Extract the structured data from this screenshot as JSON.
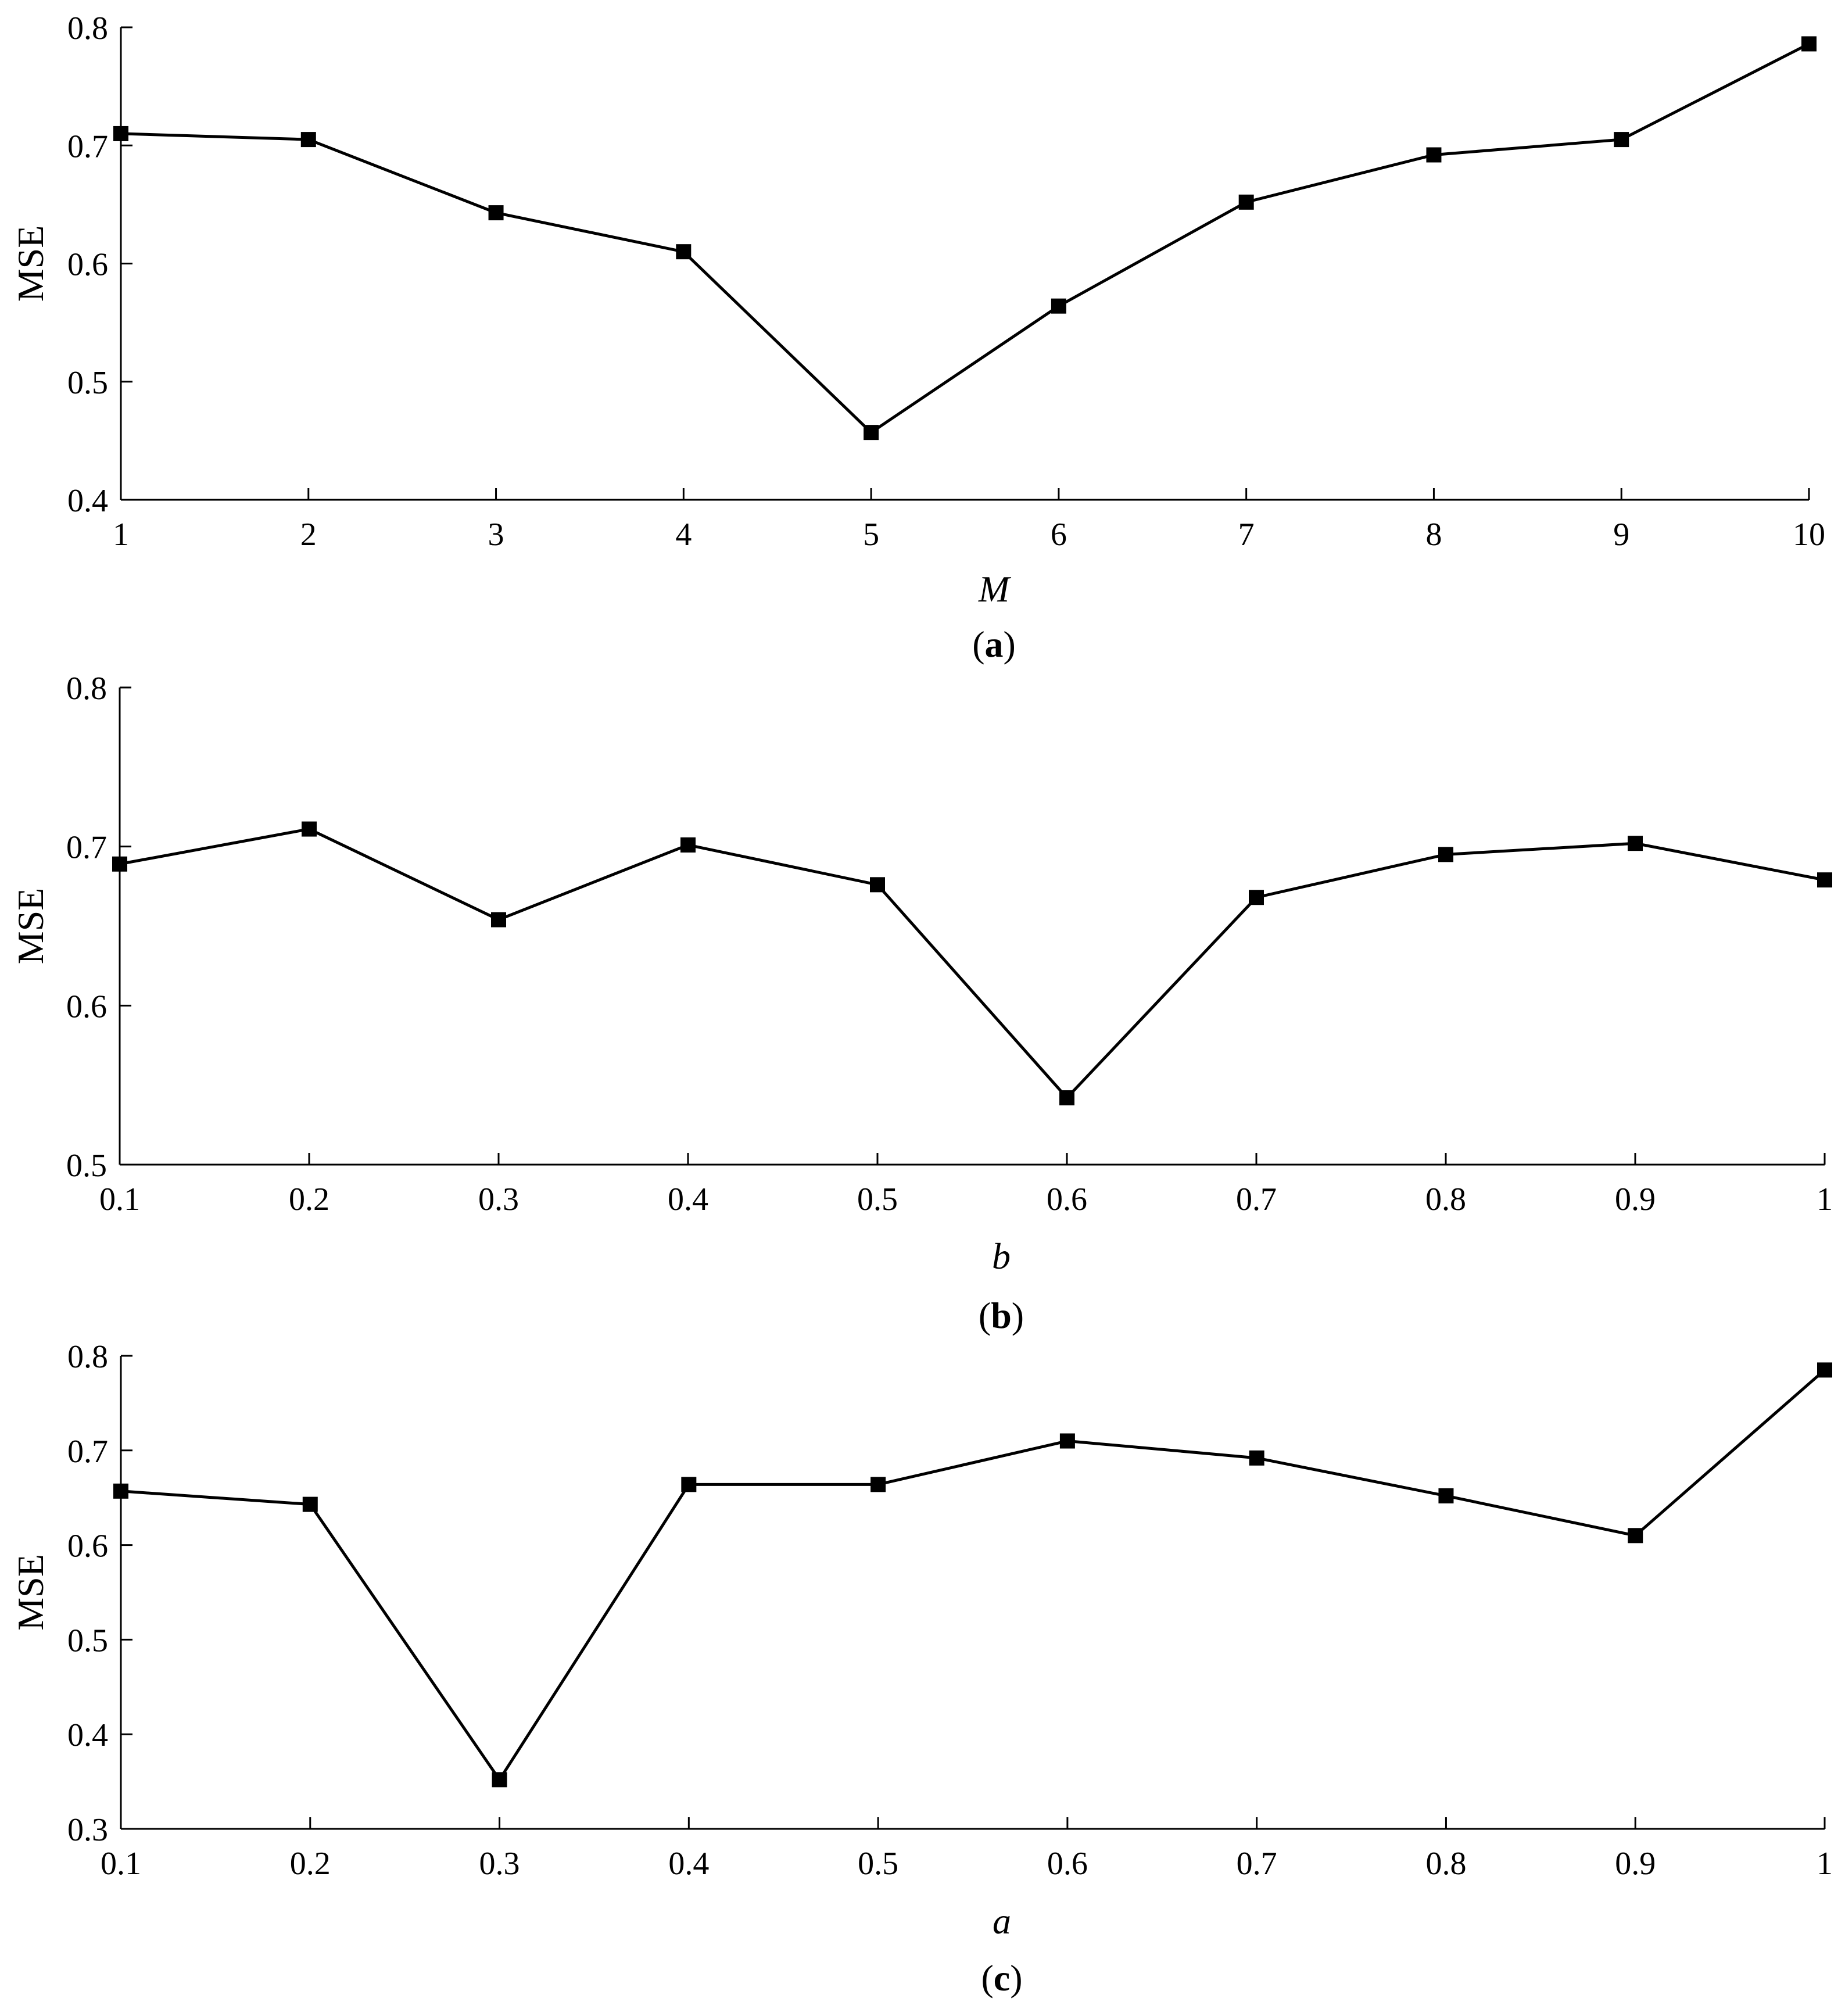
{
  "chart_data": [
    {
      "type": "line",
      "caption": {
        "open": "(",
        "letter": "a",
        "close": ")"
      },
      "xlabel": "M",
      "ylabel": "MSE",
      "xlim": [
        1,
        10
      ],
      "ylim": [
        0.4,
        0.8
      ],
      "xticks": [
        1,
        2,
        3,
        4,
        5,
        6,
        7,
        8,
        9,
        10
      ],
      "xtick_labels": [
        "1",
        "2",
        "3",
        "4",
        "5",
        "6",
        "7",
        "8",
        "9",
        "10"
      ],
      "yticks": [
        0.4,
        0.5,
        0.6,
        0.7,
        0.8
      ],
      "ytick_labels": [
        "0.4",
        "0.5",
        "0.6",
        "0.7",
        "0.8"
      ],
      "grid": false,
      "legend": "none",
      "series": [
        {
          "x": [
            1,
            2,
            3,
            4,
            5,
            6,
            7,
            8,
            9,
            10
          ],
          "values": [
            0.71,
            0.705,
            0.643,
            0.61,
            0.457,
            0.564,
            0.652,
            0.692,
            0.705,
            0.786
          ]
        }
      ]
    },
    {
      "type": "line",
      "caption": {
        "open": "(",
        "letter": "b",
        "close": ")"
      },
      "xlabel": "b",
      "ylabel": "MSE",
      "xlim": [
        0.1,
        1
      ],
      "ylim": [
        0.5,
        0.8
      ],
      "xticks": [
        0.1,
        0.2,
        0.3,
        0.4,
        0.5,
        0.6,
        0.7,
        0.8,
        0.9,
        1
      ],
      "xtick_labels": [
        "0.1",
        "0.2",
        "0.3",
        "0.4",
        "0.5",
        "0.6",
        "0.7",
        "0.8",
        "0.9",
        "1"
      ],
      "yticks": [
        0.5,
        0.6,
        0.7,
        0.8
      ],
      "ytick_labels": [
        "0.5",
        "0.6",
        "0.7",
        "0.8"
      ],
      "grid": false,
      "legend": "none",
      "series": [
        {
          "x": [
            0.1,
            0.2,
            0.3,
            0.4,
            0.5,
            0.6,
            0.7,
            0.8,
            0.9,
            1
          ],
          "values": [
            0.689,
            0.711,
            0.654,
            0.701,
            0.676,
            0.542,
            0.668,
            0.695,
            0.702,
            0.679
          ]
        }
      ]
    },
    {
      "type": "line",
      "caption": {
        "open": "(",
        "letter": "c",
        "close": ")"
      },
      "xlabel": "a",
      "ylabel": "MSE",
      "xlim": [
        0.1,
        1
      ],
      "ylim": [
        0.3,
        0.8
      ],
      "xticks": [
        0.1,
        0.2,
        0.3,
        0.4,
        0.5,
        0.6,
        0.7,
        0.8,
        0.9,
        1
      ],
      "xtick_labels": [
        "0.1",
        "0.2",
        "0.3",
        "0.4",
        "0.5",
        "0.6",
        "0.7",
        "0.8",
        "0.9",
        "1"
      ],
      "yticks": [
        0.3,
        0.4,
        0.5,
        0.6,
        0.7,
        0.8
      ],
      "ytick_labels": [
        "0.3",
        "0.4",
        "0.5",
        "0.6",
        "0.7",
        "0.8"
      ],
      "grid": false,
      "legend": "none",
      "series": [
        {
          "x": [
            0.1,
            0.2,
            0.3,
            0.4,
            0.5,
            0.6,
            0.7,
            0.8,
            0.9,
            1
          ],
          "values": [
            0.657,
            0.643,
            0.352,
            0.664,
            0.664,
            0.71,
            0.692,
            0.652,
            0.61,
            0.785
          ]
        }
      ]
    }
  ]
}
